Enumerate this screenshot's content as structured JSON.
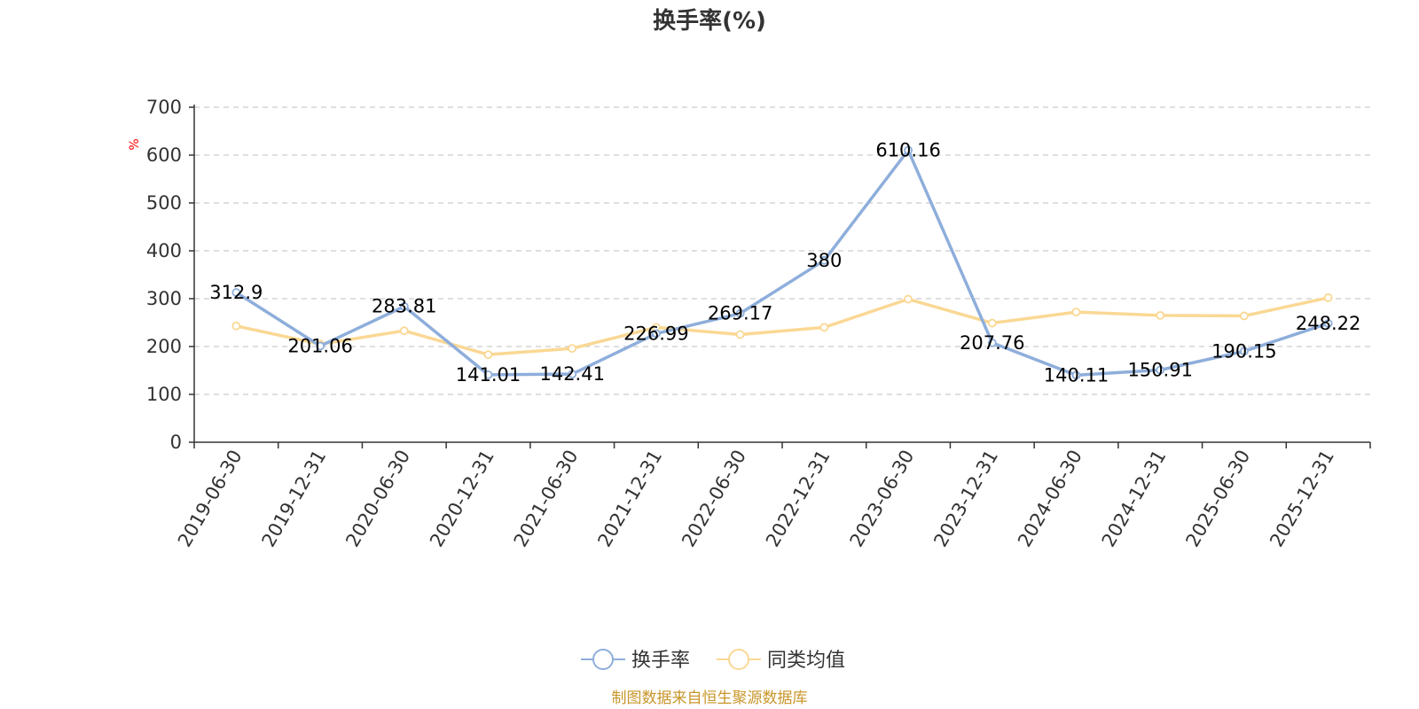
{
  "chart_data": {
    "type": "line",
    "title": "换手率(%)",
    "ylabel": "%",
    "ylim": [
      0,
      700
    ],
    "yticks": [
      0,
      100,
      200,
      300,
      400,
      500,
      600,
      700
    ],
    "categories": [
      "2019-06-30",
      "2019-12-31",
      "2020-06-30",
      "2020-12-31",
      "2021-06-30",
      "2021-12-31",
      "2022-06-30",
      "2022-12-31",
      "2023-06-30",
      "2023-12-31",
      "2024-06-30",
      "2024-12-31",
      "2025-06-30",
      "2025-12-31"
    ],
    "series": [
      {
        "name": "换手率",
        "color": "#8eaedb",
        "values": [
          312.9,
          201.06,
          283.81,
          141.01,
          142.41,
          226.99,
          269.17,
          380,
          610.16,
          207.76,
          140.11,
          150.91,
          190.15,
          248.22
        ],
        "labels": [
          "312.9",
          "201.06",
          "283.81",
          "141.01",
          "142.41",
          "226.99",
          "269.17",
          "380",
          "610.16",
          "207.76",
          "140.11",
          "150.91",
          "190.15",
          "248.22"
        ]
      },
      {
        "name": "同类均值",
        "color": "#fad894",
        "values": [
          243,
          205,
          233,
          183,
          196,
          240,
          225,
          240,
          299,
          249,
          272,
          265,
          264,
          302
        ]
      }
    ],
    "grid": true,
    "legend_position": "bottom-center"
  },
  "source_note": "制图数据来自恒生聚源数据库"
}
